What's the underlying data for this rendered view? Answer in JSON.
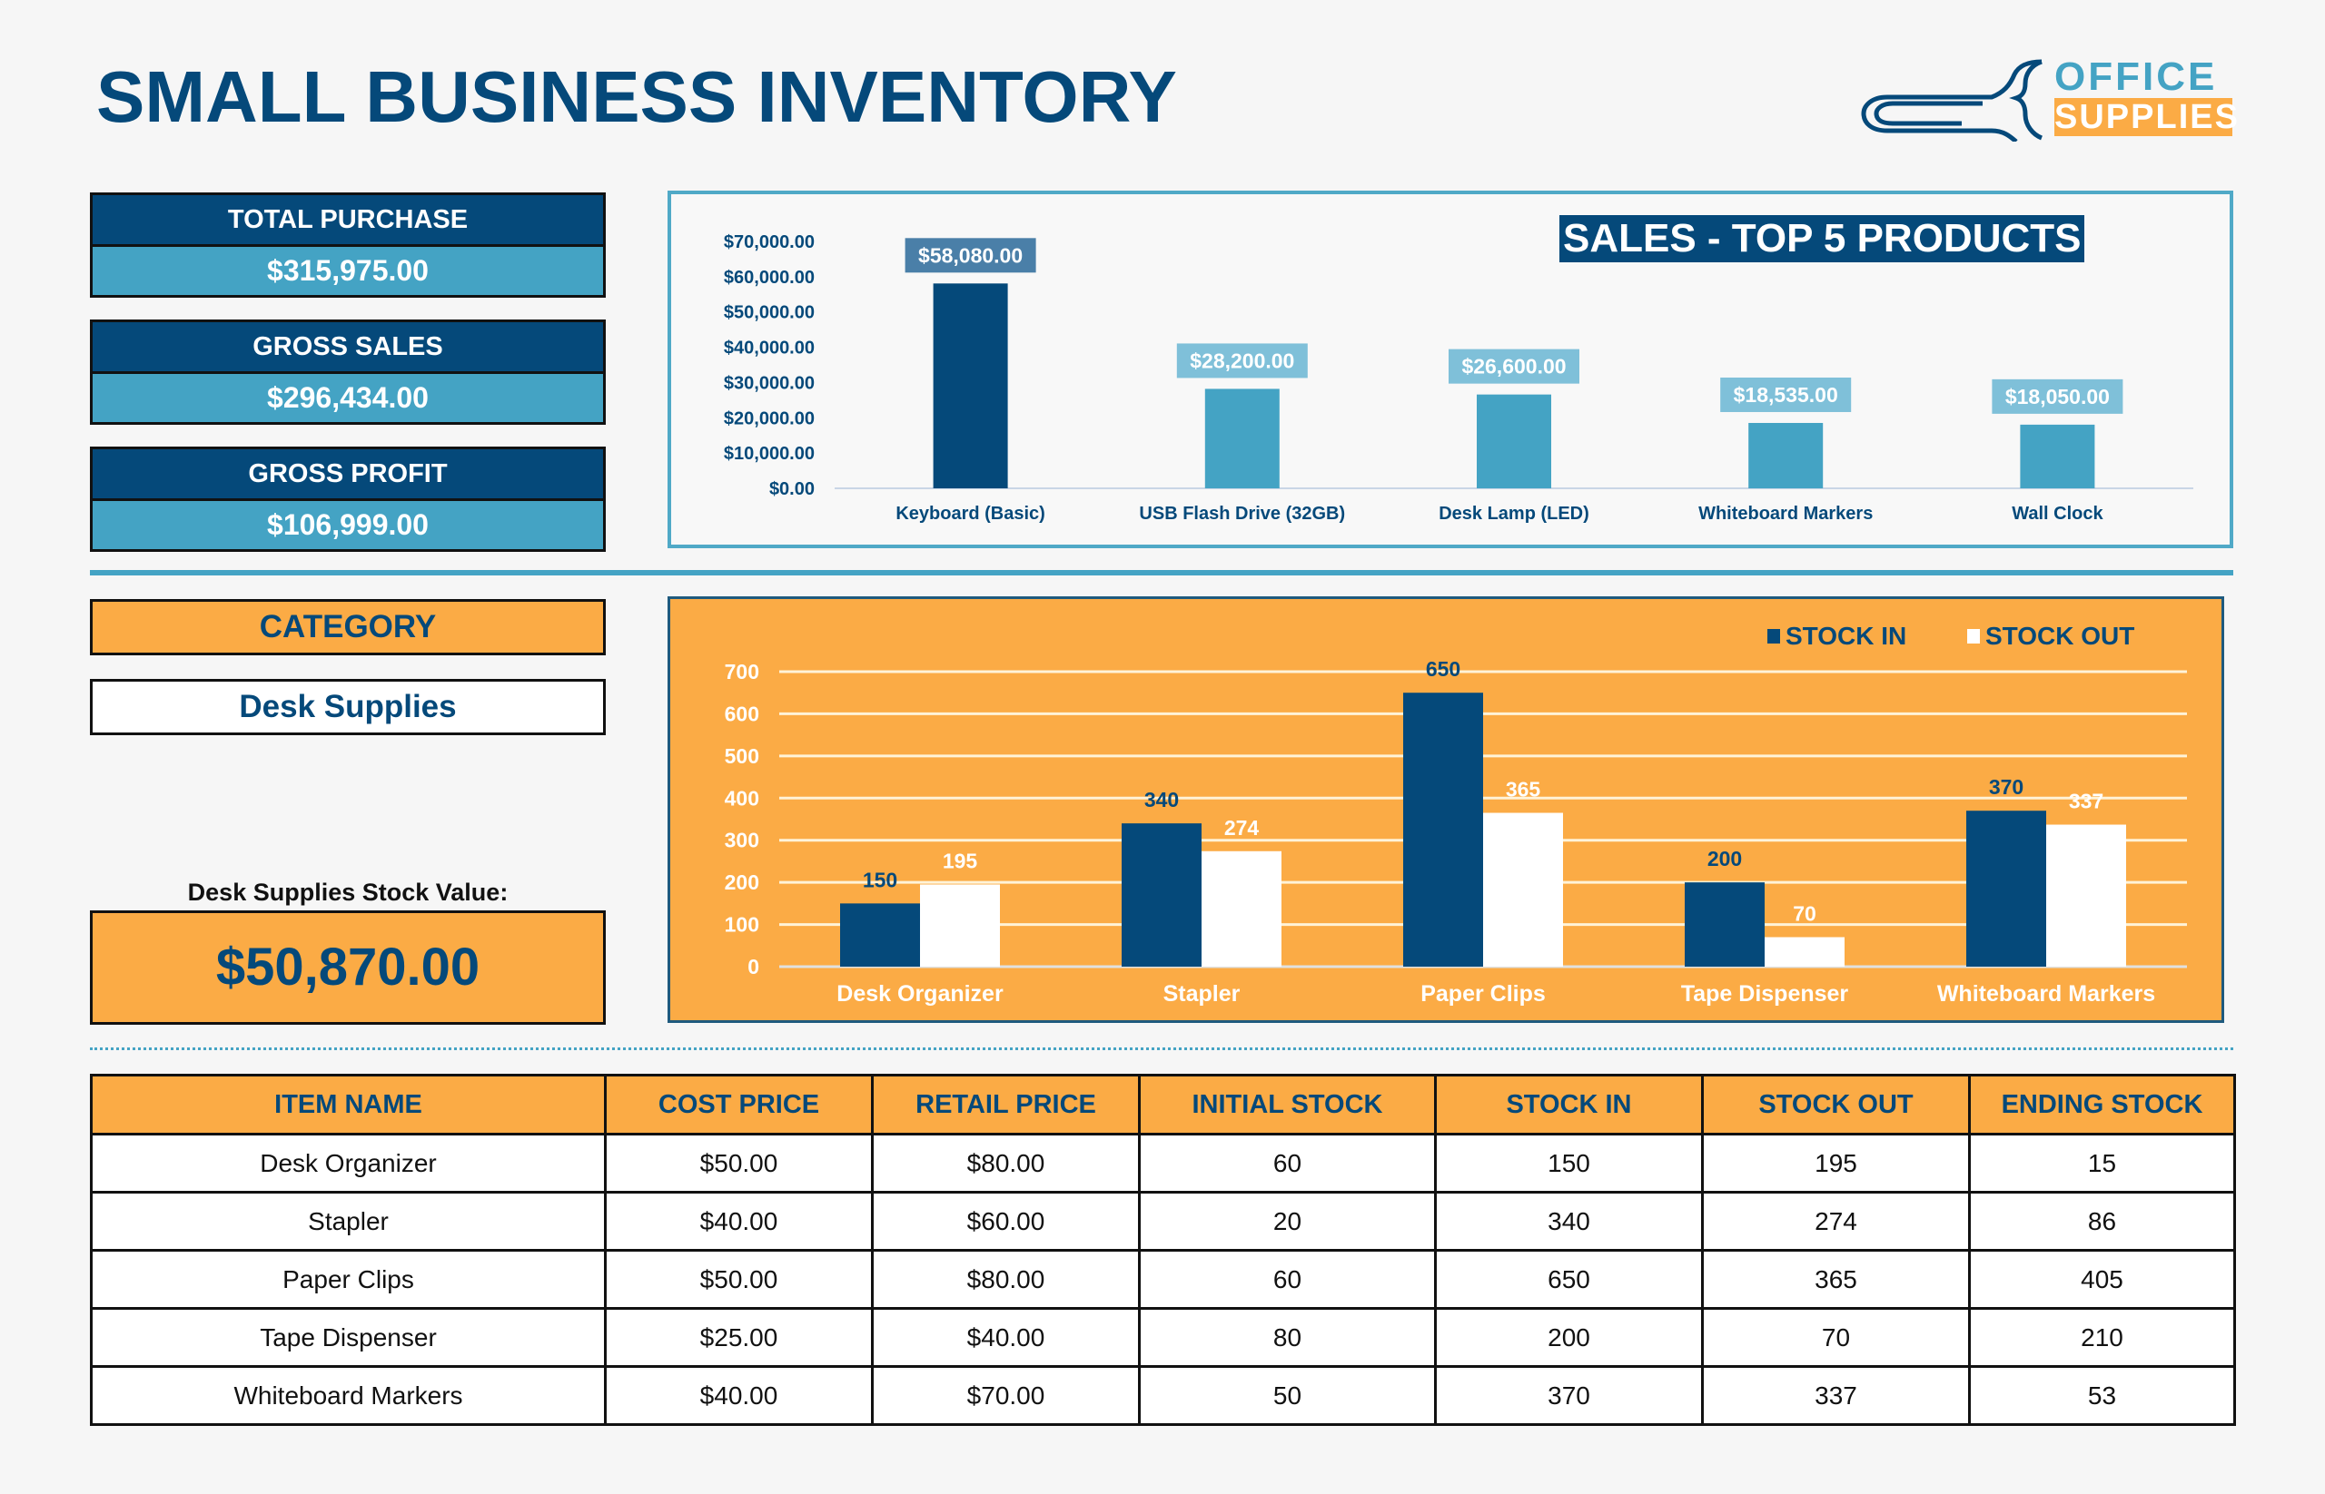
{
  "header": {
    "title": "SMALL BUSINESS INVENTORY",
    "logo": {
      "line1": "OFFICE",
      "line2": "SUPPLIES",
      "icon": "paperclip-icon"
    }
  },
  "colors": {
    "navy": "#05497a",
    "teal": "#44a3c4",
    "orange": "#fbab45",
    "white": "#ffffff"
  },
  "kpis": [
    {
      "label": "TOTAL PURCHASE",
      "value": "$315,975.00"
    },
    {
      "label": "GROSS SALES",
      "value": "$296,434.00"
    },
    {
      "label": "GROSS PROFIT",
      "value": "$106,999.00"
    }
  ],
  "category": {
    "label": "CATEGORY",
    "selected": "Desk Supplies",
    "stock_value_label": "Desk Supplies Stock Value:",
    "stock_value": "$50,870.00"
  },
  "chart_data": [
    {
      "type": "bar",
      "title": "SALES - TOP 5 PRODUCTS",
      "categories": [
        "Keyboard (Basic)",
        "USB Flash Drive (32GB)",
        "Desk Lamp (LED)",
        "Whiteboard Markers",
        "Wall Clock"
      ],
      "values": [
        58080,
        28200,
        26600,
        18535,
        18050
      ],
      "data_labels": [
        "$58,080.00",
        "$28,200.00",
        "$26,600.00",
        "$18,535.00",
        "$18,050.00"
      ],
      "ylim": [
        0,
        70000
      ],
      "yticks": [
        0,
        10000,
        20000,
        30000,
        40000,
        50000,
        60000,
        70000
      ],
      "ytick_labels": [
        "$0.00",
        "$10,000.00",
        "$20,000.00",
        "$30,000.00",
        "$40,000.00",
        "$50,000.00",
        "$60,000.00",
        "$70,000.00"
      ],
      "xlabel": "",
      "ylabel": "",
      "grid": false,
      "legend": "none"
    },
    {
      "type": "bar",
      "title": "",
      "categories": [
        "Desk Organizer",
        "Stapler",
        "Paper Clips",
        "Tape Dispenser",
        "Whiteboard Markers"
      ],
      "series": [
        {
          "name": "STOCK IN",
          "values": [
            150,
            340,
            650,
            200,
            370
          ],
          "color": "#05497a"
        },
        {
          "name": "STOCK OUT",
          "values": [
            195,
            274,
            365,
            70,
            337
          ],
          "color": "#ffffff"
        }
      ],
      "ylim": [
        0,
        700
      ],
      "yticks": [
        0,
        100,
        200,
        300,
        400,
        500,
        600,
        700
      ],
      "ytick_labels": [
        "0",
        "100",
        "200",
        "300",
        "400",
        "500",
        "600",
        "700"
      ],
      "xlabel": "",
      "ylabel": "",
      "grid": true,
      "legend": "top-right"
    }
  ],
  "table": {
    "columns": [
      "ITEM NAME",
      "COST PRICE",
      "RETAIL PRICE",
      "INITIAL STOCK",
      "STOCK IN",
      "STOCK OUT",
      "ENDING STOCK"
    ],
    "rows": [
      [
        "Desk Organizer",
        "$50.00",
        "$80.00",
        "60",
        "150",
        "195",
        "15"
      ],
      [
        "Stapler",
        "$40.00",
        "$60.00",
        "20",
        "340",
        "274",
        "86"
      ],
      [
        "Paper Clips",
        "$50.00",
        "$80.00",
        "60",
        "650",
        "365",
        "405"
      ],
      [
        "Tape Dispenser",
        "$25.00",
        "$40.00",
        "80",
        "200",
        "70",
        "210"
      ],
      [
        "Whiteboard Markers",
        "$40.00",
        "$70.00",
        "50",
        "370",
        "337",
        "53"
      ]
    ]
  }
}
